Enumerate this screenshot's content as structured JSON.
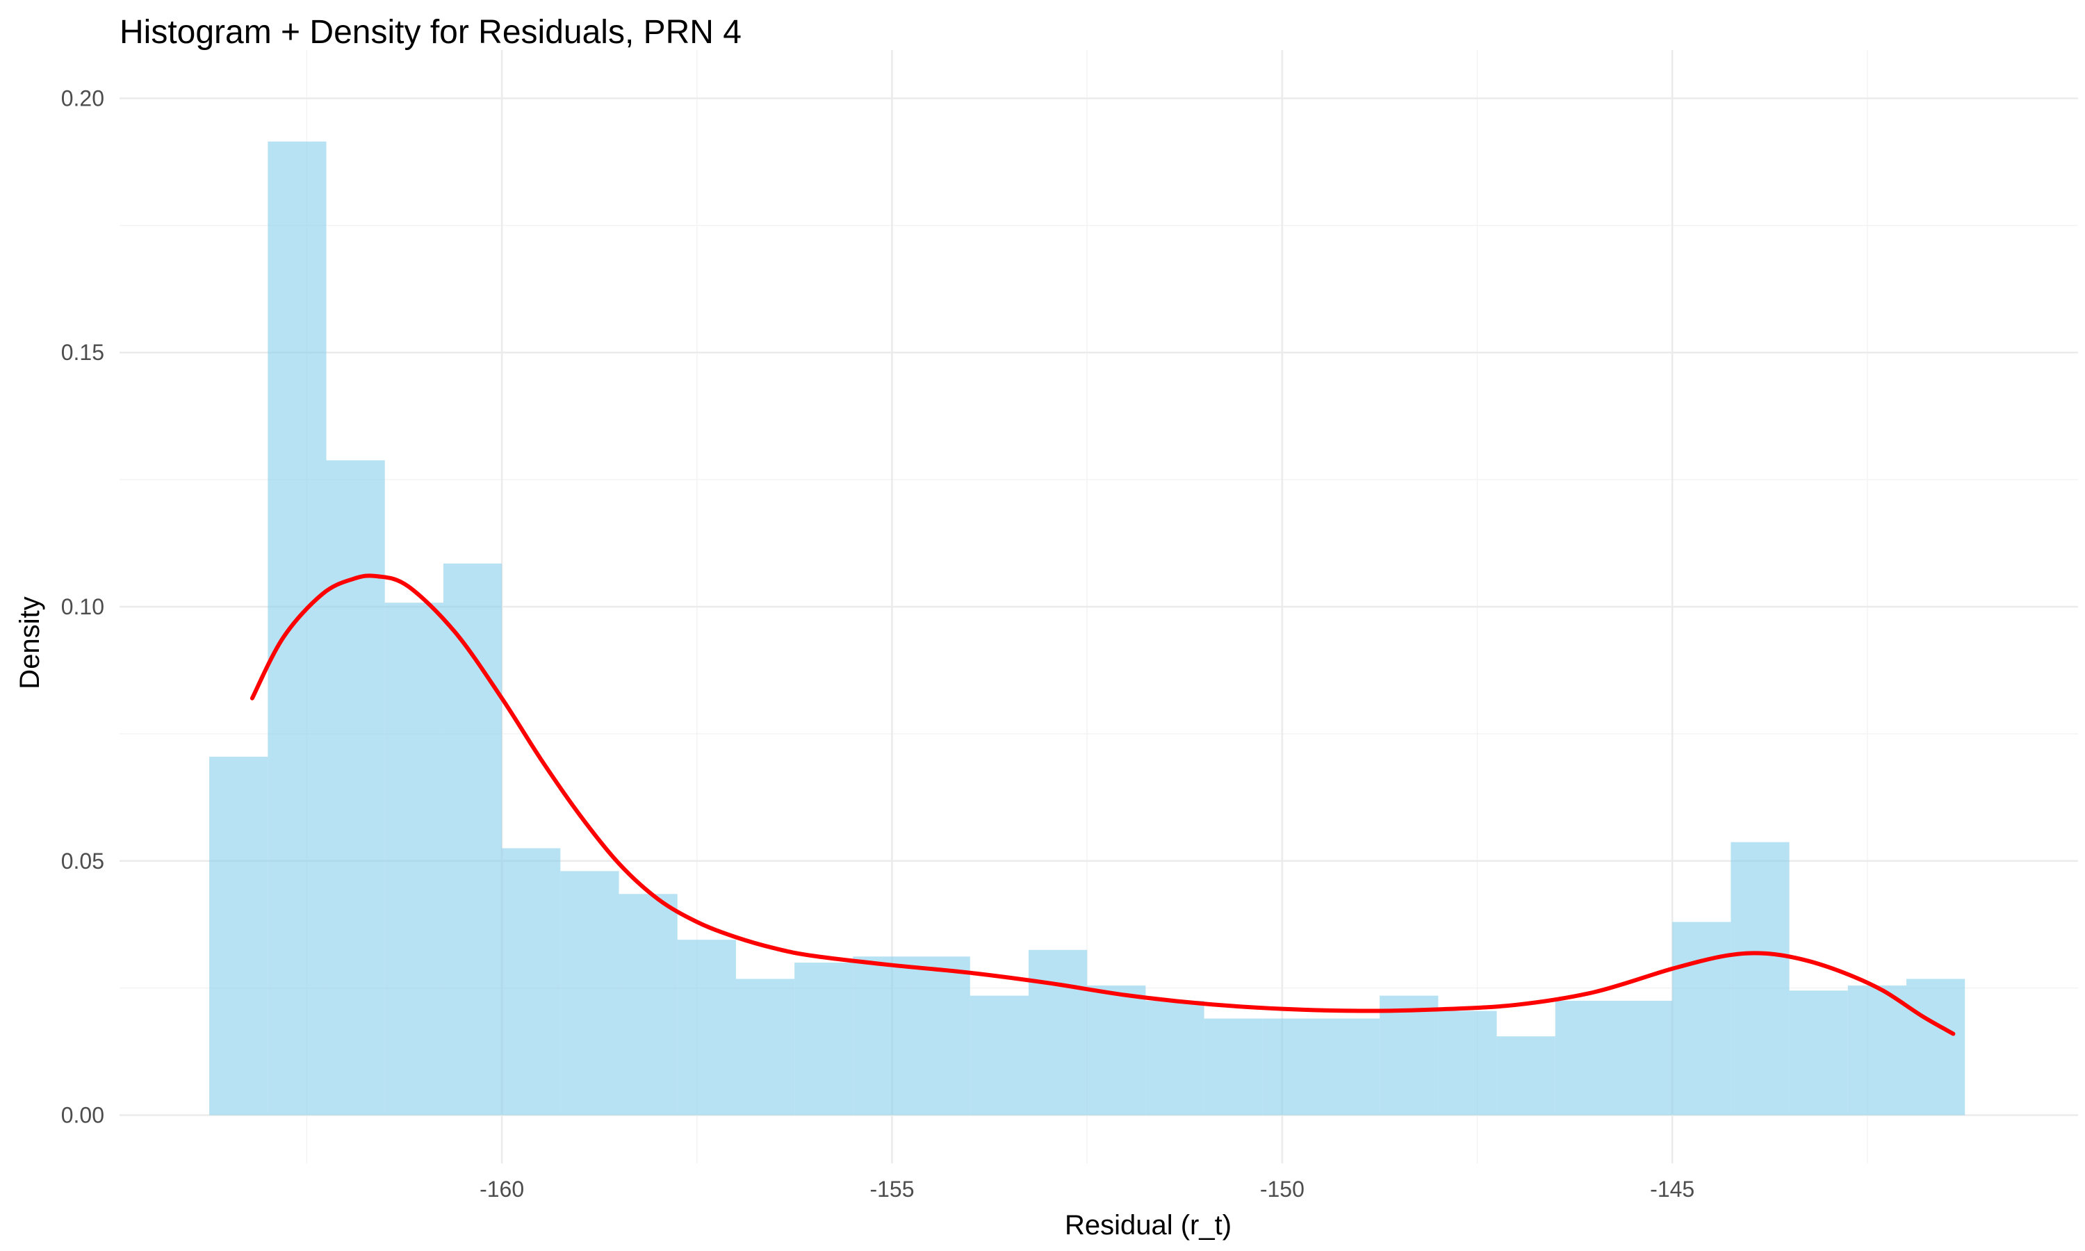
{
  "chart_data": {
    "type": "histogram",
    "title": "Histogram + Density for Residuals, PRN 4",
    "xlabel": "Residual (r_t)",
    "ylabel": "Density",
    "xlim": [
      -164.9,
      -139.8
    ],
    "ylim": [
      -0.0095,
      0.2095
    ],
    "x_ticks": [
      {
        "value": -160,
        "label": "-160"
      },
      {
        "value": -155,
        "label": "-155"
      },
      {
        "value": -150,
        "label": "-150"
      },
      {
        "value": -145,
        "label": "-145"
      }
    ],
    "x_minor_ticks": [
      -162.5,
      -157.5,
      -152.5,
      -147.5,
      -142.5
    ],
    "y_ticks": [
      {
        "value": 0.0,
        "label": "0.00"
      },
      {
        "value": 0.05,
        "label": "0.05"
      },
      {
        "value": 0.1,
        "label": "0.10"
      },
      {
        "value": 0.15,
        "label": "0.15"
      },
      {
        "value": 0.2,
        "label": "0.20"
      }
    ],
    "y_minor_ticks": [
      0.025,
      0.075,
      0.125,
      0.175
    ],
    "grid": true,
    "bins": [
      {
        "x0": -163.75,
        "x1": -163.0,
        "density": 0.0705
      },
      {
        "x0": -163.0,
        "x1": -162.25,
        "density": 0.1915
      },
      {
        "x0": -162.25,
        "x1": -161.5,
        "density": 0.1288
      },
      {
        "x0": -161.5,
        "x1": -160.75,
        "density": 0.1008
      },
      {
        "x0": -160.75,
        "x1": -160.0,
        "density": 0.1085
      },
      {
        "x0": -160.0,
        "x1": -159.25,
        "density": 0.0525
      },
      {
        "x0": -159.25,
        "x1": -158.5,
        "density": 0.048
      },
      {
        "x0": -158.5,
        "x1": -157.75,
        "density": 0.0435
      },
      {
        "x0": -157.75,
        "x1": -157.0,
        "density": 0.0345
      },
      {
        "x0": -157.0,
        "x1": -156.25,
        "density": 0.0268
      },
      {
        "x0": -156.25,
        "x1": -155.5,
        "density": 0.03
      },
      {
        "x0": -155.5,
        "x1": -154.75,
        "density": 0.0312
      },
      {
        "x0": -154.75,
        "x1": -154.0,
        "density": 0.0312
      },
      {
        "x0": -154.0,
        "x1": -153.25,
        "density": 0.0235
      },
      {
        "x0": -153.25,
        "x1": -152.5,
        "density": 0.0325
      },
      {
        "x0": -152.5,
        "x1": -151.75,
        "density": 0.0255
      },
      {
        "x0": -151.75,
        "x1": -151.0,
        "density": 0.0225
      },
      {
        "x0": -151.0,
        "x1": -150.25,
        "density": 0.019
      },
      {
        "x0": -150.25,
        "x1": -149.5,
        "density": 0.019
      },
      {
        "x0": -149.5,
        "x1": -148.75,
        "density": 0.019
      },
      {
        "x0": -148.75,
        "x1": -148.0,
        "density": 0.0235
      },
      {
        "x0": -148.0,
        "x1": -147.25,
        "density": 0.0205
      },
      {
        "x0": -147.25,
        "x1": -146.5,
        "density": 0.0155
      },
      {
        "x0": -146.5,
        "x1": -145.75,
        "density": 0.0225
      },
      {
        "x0": -145.75,
        "x1": -145.0,
        "density": 0.0225
      },
      {
        "x0": -145.0,
        "x1": -144.25,
        "density": 0.038
      },
      {
        "x0": -144.25,
        "x1": -143.5,
        "density": 0.0537
      },
      {
        "x0": -143.5,
        "x1": -142.75,
        "density": 0.0245
      },
      {
        "x0": -142.75,
        "x1": -142.0,
        "density": 0.0255
      },
      {
        "x0": -142.0,
        "x1": -141.25,
        "density": 0.0268
      }
    ],
    "density_curve": {
      "x": [
        -163.2,
        -162.8,
        -162.3,
        -161.9,
        -161.6,
        -161.2,
        -160.6,
        -160.0,
        -159.5,
        -159.0,
        -158.5,
        -158.0,
        -157.5,
        -157.0,
        -156.5,
        -156.0,
        -155.0,
        -154.0,
        -153.0,
        -152.0,
        -151.0,
        -150.0,
        -149.0,
        -148.0,
        -147.0,
        -146.0,
        -145.0,
        -144.3,
        -143.8,
        -143.3,
        -142.8,
        -142.3,
        -141.8,
        -141.4
      ],
      "y": [
        0.082,
        0.094,
        0.1025,
        0.1055,
        0.106,
        0.104,
        0.095,
        0.082,
        0.07,
        0.059,
        0.0495,
        0.0425,
        0.038,
        0.035,
        0.0328,
        0.0313,
        0.0295,
        0.028,
        0.026,
        0.0236,
        0.0219,
        0.0209,
        0.0205,
        0.0208,
        0.0217,
        0.0242,
        0.0288,
        0.0314,
        0.0318,
        0.0305,
        0.028,
        0.0245,
        0.0195,
        0.016
      ]
    },
    "colors": {
      "bars": "#87ceeb",
      "bar_opacity": 0.6,
      "density_line": "#ff0000"
    }
  }
}
